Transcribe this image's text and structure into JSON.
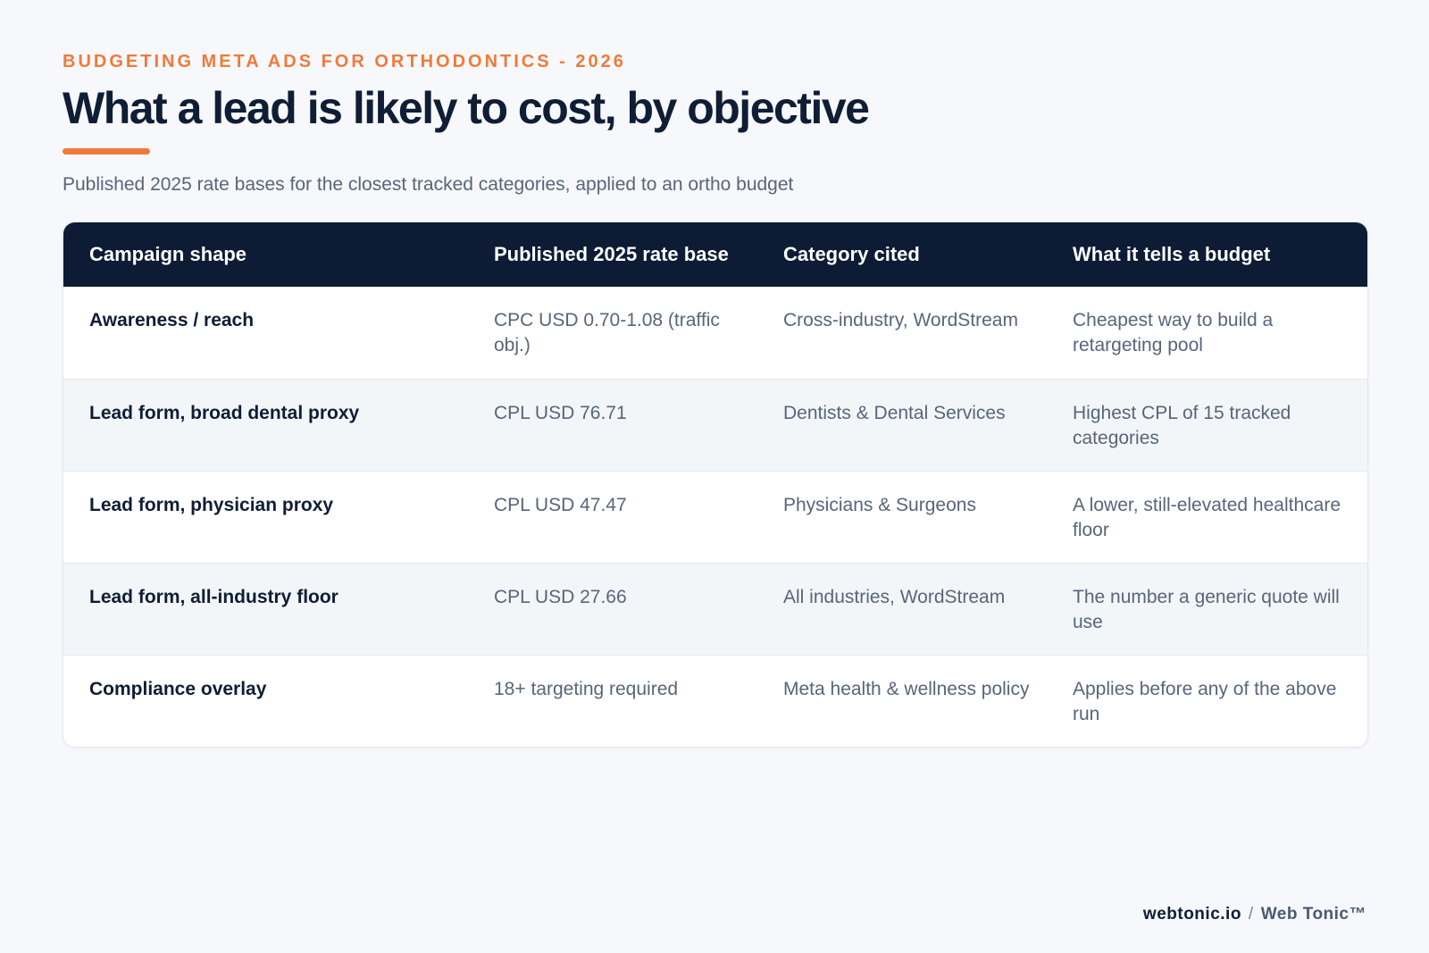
{
  "header": {
    "eyebrow": "BUDGETING META ADS FOR ORTHODONTICS - 2026",
    "title": "What a lead is likely to cost, by objective",
    "subtitle": "Published 2025 rate bases for the closest tracked categories, applied to an ortho budget"
  },
  "table": {
    "columns": [
      "Campaign shape",
      "Published 2025 rate base",
      "Category cited",
      "What it tells a budget"
    ],
    "rows": [
      [
        "Awareness / reach",
        "CPC USD 0.70-1.08 (traffic obj.)",
        "Cross-industry, WordStream",
        "Cheapest way to build a retargeting pool"
      ],
      [
        "Lead form, broad dental proxy",
        "CPL USD 76.71",
        "Dentists & Dental Services",
        "Highest CPL of 15 tracked categories"
      ],
      [
        "Lead form, physician proxy",
        "CPL USD 47.47",
        "Physicians & Surgeons",
        "A lower, still-elevated healthcare floor"
      ],
      [
        "Lead form, all-industry floor",
        "CPL USD 27.66",
        "All industries, WordStream",
        "The number a generic quote will use"
      ],
      [
        "Compliance overlay",
        "18+ targeting required",
        "Meta health & wellness policy",
        "Applies before any of the above run"
      ]
    ]
  },
  "footer": {
    "site": "webtonic.io",
    "separator": "/",
    "brand": "Web Tonic™"
  },
  "colors": {
    "accent": "#f07a3a",
    "header_bg": "#0d1b34",
    "text_dark": "#0f1d35",
    "text_muted": "#58657a",
    "page_bg": "#f6f8fb"
  }
}
